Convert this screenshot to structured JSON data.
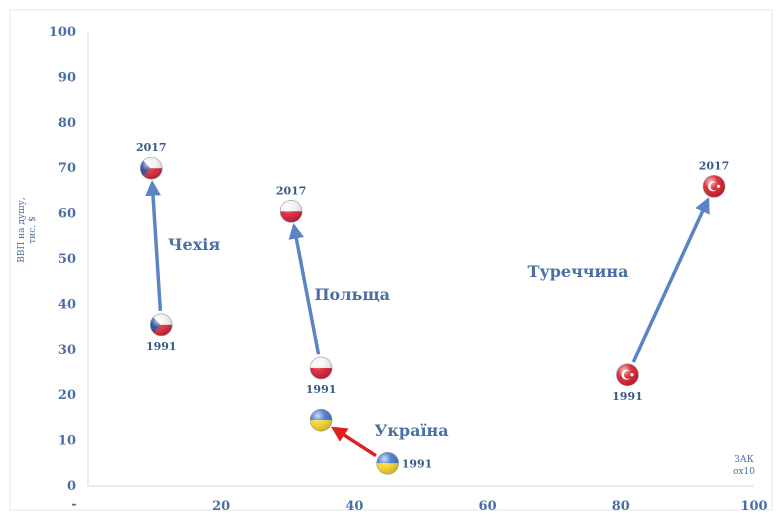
{
  "chart_data": {
    "type": "scatter",
    "title": "",
    "ylabel_lines": [
      "ВВП на душу,",
      "тис. $"
    ],
    "xlabel_lines": [
      "ЗАК",
      "ох10"
    ],
    "xlim": [
      0,
      100
    ],
    "ylim": [
      0,
      100
    ],
    "x_ticks": [
      20,
      40,
      60,
      80,
      100
    ],
    "x_tick_labels": [
      "20",
      "40",
      "60",
      "80",
      "100"
    ],
    "y_ticks": [
      0,
      10,
      20,
      30,
      40,
      50,
      60,
      70,
      80,
      90,
      100
    ],
    "y_tick_labels": [
      "0",
      "10",
      "20",
      "30",
      "40",
      "50",
      "60",
      "70",
      "80",
      "90",
      "100"
    ],
    "x_origin_label": "-",
    "grid": false,
    "series": [
      {
        "name": "Чехія",
        "flag": "czech",
        "arrow_color": "#5b84c4",
        "points": [
          {
            "x": 11,
            "y": 35.5,
            "year": "1991"
          },
          {
            "x": 9.5,
            "y": 70,
            "year": "2017"
          }
        ],
        "label_pos": {
          "x": 12,
          "y": 52
        }
      },
      {
        "name": "Польща",
        "flag": "poland",
        "arrow_color": "#5b84c4",
        "points": [
          {
            "x": 35,
            "y": 26,
            "year": "1991"
          },
          {
            "x": 30.5,
            "y": 60.5,
            "year": "2017"
          }
        ],
        "label_pos": {
          "x": 34,
          "y": 41
        }
      },
      {
        "name": "Україна",
        "flag": "ukraine",
        "arrow_color": "#e02020",
        "points": [
          {
            "x": 45,
            "y": 5,
            "year": "1991"
          },
          {
            "x": 35,
            "y": 14.5,
            "year": ""
          }
        ],
        "label_pos": {
          "x": 43,
          "y": 11
        }
      },
      {
        "name": "Туреччина",
        "flag": "turkey",
        "arrow_color": "#5b84c4",
        "points": [
          {
            "x": 81,
            "y": 24.5,
            "year": "1991"
          },
          {
            "x": 94,
            "y": 66,
            "year": "2017"
          }
        ],
        "label_pos": {
          "x": 66,
          "y": 46
        }
      }
    ]
  }
}
